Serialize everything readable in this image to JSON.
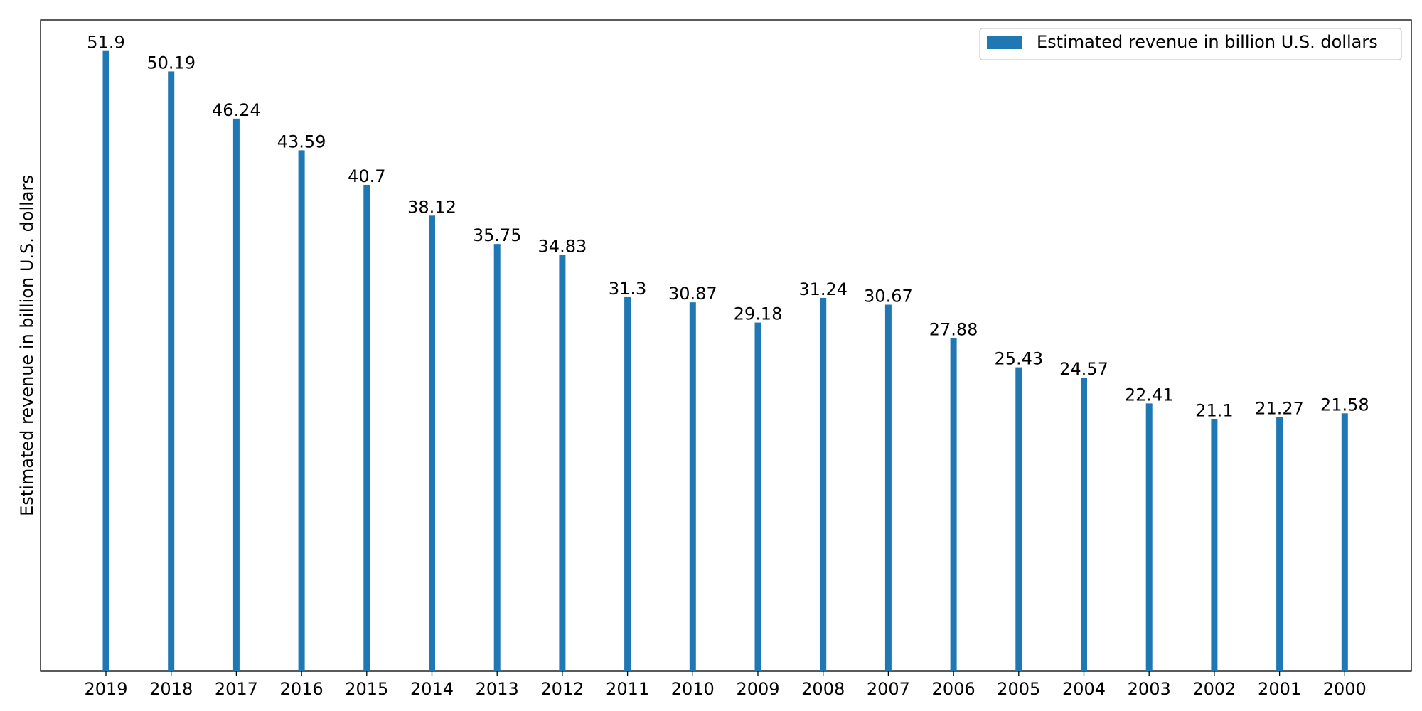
{
  "chart_data": {
    "type": "bar",
    "categories": [
      "2019",
      "2018",
      "2017",
      "2016",
      "2015",
      "2014",
      "2013",
      "2012",
      "2011",
      "2010",
      "2009",
      "2008",
      "2007",
      "2006",
      "2005",
      "2004",
      "2003",
      "2002",
      "2001",
      "2000"
    ],
    "series": [
      {
        "name": "Estimated revenue in billion U.S. dollars",
        "values": [
          51.9,
          50.19,
          46.24,
          43.59,
          40.7,
          38.12,
          35.75,
          34.83,
          31.3,
          30.87,
          29.18,
          31.24,
          30.67,
          27.88,
          25.43,
          24.57,
          22.41,
          21.1,
          21.27,
          21.58
        ],
        "color": "#1f77b4"
      }
    ],
    "title": "",
    "xlabel": "",
    "ylabel": "Estimated revenue in billion U.S. dollars",
    "ylim": [
      0,
      54.5
    ],
    "y_ticks_visible": false,
    "grid": false,
    "legend_position": "top-right",
    "data_labels": true
  }
}
